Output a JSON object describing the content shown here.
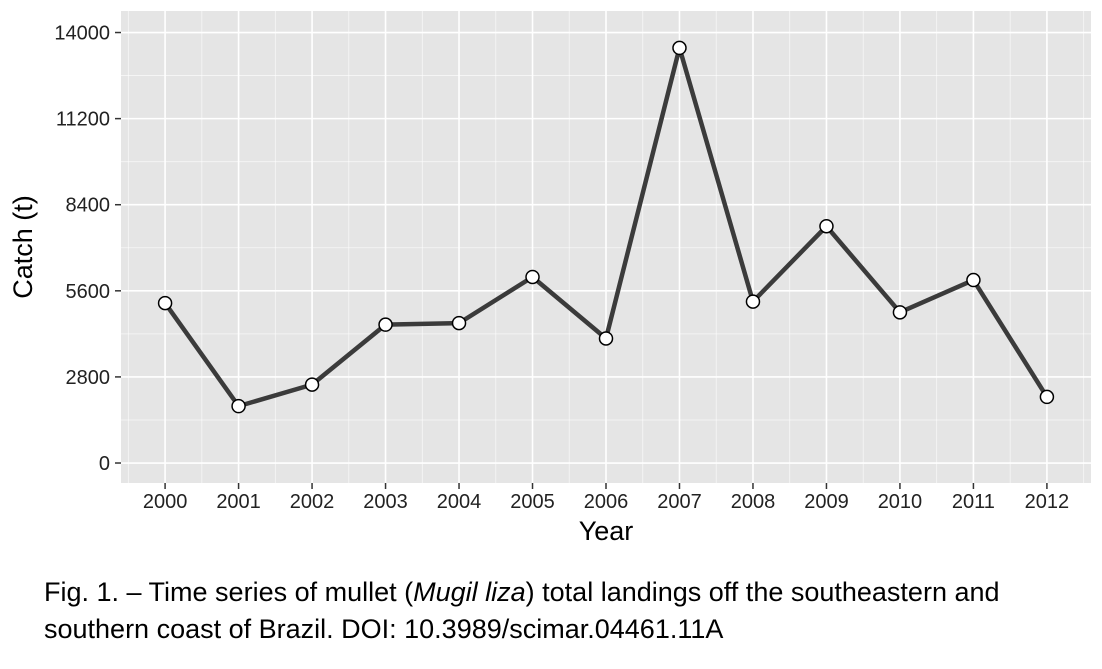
{
  "chart_data": {
    "type": "line",
    "x": [
      "2000",
      "2001",
      "2002",
      "2003",
      "2004",
      "2005",
      "2006",
      "2007",
      "2008",
      "2009",
      "2010",
      "2011",
      "2012"
    ],
    "series": [
      {
        "values": [
          5200,
          1850,
          2550,
          4500,
          4550,
          6050,
          4050,
          13500,
          5250,
          7700,
          4900,
          5950,
          2150
        ]
      }
    ],
    "xlabel": "Year",
    "ylabel": "Catch (t)",
    "yticks": [
      0,
      2800,
      5600,
      8400,
      11200,
      14000
    ],
    "ylim": [
      -650,
      14700
    ],
    "grid": true,
    "colors": {
      "panel": "#e5e5e5",
      "grid": "#ffffff",
      "line": "#3b3b3b",
      "point_fill": "#ffffff",
      "point_stroke": "#000000"
    }
  },
  "caption": {
    "prefix": "Fig. 1. – Time series of mullet (",
    "species": "Mugil liza",
    "suffix": ") total landings off the southeastern and southern coast of Brazil. DOI: 10.3989/scimar.04461.11A"
  }
}
